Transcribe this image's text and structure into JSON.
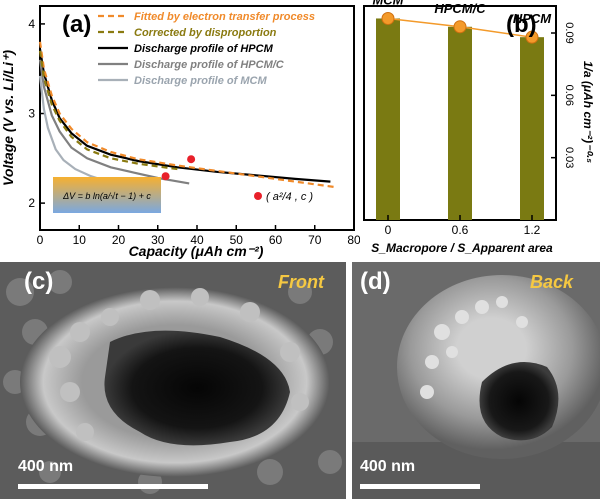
{
  "panel_a": {
    "label": "(a)",
    "legend": [
      {
        "text": "Fitted by electron transfer process",
        "color": "#f08a2a",
        "style": "dashed"
      },
      {
        "text": "Corrected by disproportion",
        "color": "#8a7a10",
        "style": "dashed"
      },
      {
        "text": "Discharge profile of HPCM",
        "color": "#000000",
        "style": "solid"
      },
      {
        "text": "Discharge profile of HPCM/C",
        "color": "#808080",
        "style": "solid"
      },
      {
        "text": "Discharge profile of MCM",
        "color": "#a8b0b8",
        "style": "solid"
      }
    ],
    "formula_text": "ΔV = b ln(a/√t − 1) + c",
    "marker_label": "( a²/4 , c )",
    "marker_color": "#e8202a"
  },
  "panel_b": {
    "label": "(b)",
    "bar_color": "#7a7a12",
    "point_color": "#f39a2a"
  },
  "panel_c": {
    "label": "(c)",
    "tag": "Front",
    "scale_text": "400 nm"
  },
  "panel_d": {
    "label": "(d)",
    "tag": "Back",
    "scale_text": "400 nm"
  },
  "chart_data": [
    {
      "type": "line",
      "title": "",
      "xlabel": "Capacity (μAh cm⁻²)",
      "ylabel": "Voltage (V vs. Li/Li⁺)",
      "xlim": [
        0,
        80
      ],
      "ylim": [
        1.7,
        4.2
      ],
      "xticks": [
        0,
        10,
        20,
        30,
        40,
        50,
        60,
        70,
        80
      ],
      "yticks": [
        2,
        3,
        4
      ],
      "series": [
        {
          "name": "Discharge profile of HPCM",
          "color": "#000000",
          "x": [
            0,
            1,
            3,
            5,
            8,
            12,
            18,
            25,
            35,
            45,
            55,
            65,
            74
          ],
          "y": [
            3.72,
            3.45,
            3.15,
            2.95,
            2.78,
            2.64,
            2.54,
            2.47,
            2.4,
            2.35,
            2.31,
            2.27,
            2.24
          ]
        },
        {
          "name": "Discharge profile of HPCM/C",
          "color": "#808080",
          "x": [
            0,
            1,
            3,
            5,
            8,
            12,
            18,
            24,
            30,
            34,
            38
          ],
          "y": [
            3.6,
            3.3,
            2.98,
            2.8,
            2.62,
            2.5,
            2.4,
            2.34,
            2.28,
            2.25,
            2.22
          ]
        },
        {
          "name": "Discharge profile of MCM",
          "color": "#a8b0b8",
          "x": [
            0,
            1,
            2,
            4,
            6,
            9,
            13,
            18,
            23,
            26
          ],
          "y": [
            3.42,
            3.05,
            2.84,
            2.6,
            2.48,
            2.38,
            2.3,
            2.23,
            2.17,
            2.13
          ]
        },
        {
          "name": "Fitted by electron transfer process",
          "color": "#f08a2a",
          "x": [
            0,
            1,
            3,
            5,
            8,
            12,
            18,
            25,
            35,
            45,
            55,
            65,
            75
          ],
          "y": [
            3.8,
            3.5,
            3.2,
            3.0,
            2.83,
            2.68,
            2.57,
            2.49,
            2.42,
            2.36,
            2.3,
            2.24,
            2.18
          ]
        },
        {
          "name": "Corrected by disproportion",
          "color": "#8a7a10",
          "x": [
            0,
            1,
            3,
            5,
            8,
            12,
            18,
            25,
            35
          ],
          "y": [
            3.7,
            3.4,
            3.1,
            2.92,
            2.74,
            2.6,
            2.5,
            2.44,
            2.38
          ]
        }
      ],
      "points": [
        {
          "x": 27,
          "y": 2.14
        },
        {
          "x": 32,
          "y": 2.3
        },
        {
          "x": 38.5,
          "y": 2.49
        }
      ]
    },
    {
      "type": "bar",
      "title": "",
      "xlabel": "S_Macropore / S_Apparent area",
      "ylabel": "1/a (μAh cm⁻²)⁻⁰·⁵",
      "xlim": [
        -0.2,
        1.4
      ],
      "ylim": [
        0,
        0.103
      ],
      "xticks": [
        0,
        0.6,
        1.2
      ],
      "yticks": [
        0.03,
        0.06,
        0.09
      ],
      "categories": [
        "MCM",
        "HPCM/C",
        "HPCM"
      ],
      "x": [
        0,
        0.6,
        1.2
      ],
      "values": [
        0.097,
        0.093,
        0.088
      ]
    }
  ]
}
